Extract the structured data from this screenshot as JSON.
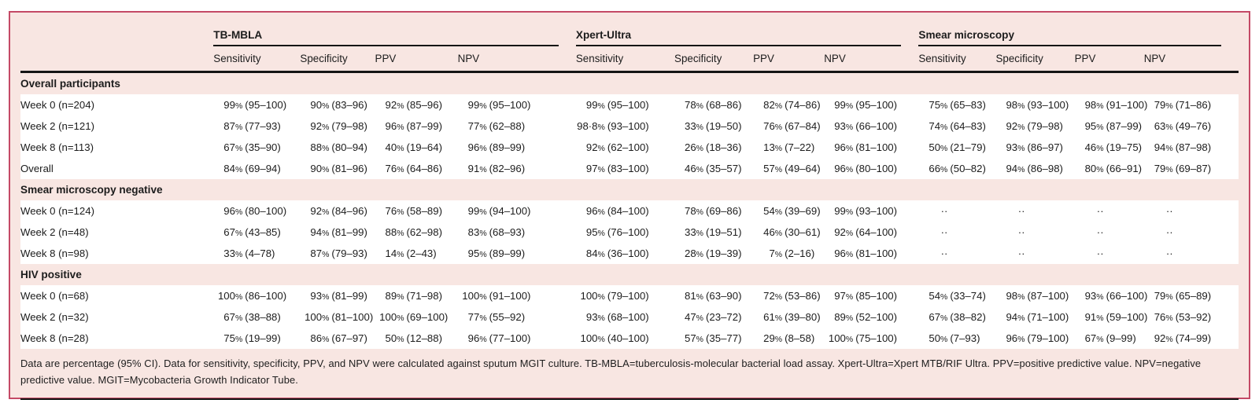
{
  "theme": {
    "card_background": "#f8e6e2",
    "card_border": "#c44a66",
    "rule_color": "#151515",
    "data_row_background": "#ffffff",
    "text_color": "#1c1c1c"
  },
  "table": {
    "column_groups": [
      {
        "label": "TB-MBLA",
        "columns": [
          "Sensitivity",
          "Specificity",
          "PPV",
          "NPV"
        ]
      },
      {
        "label": "Xpert-Ultra",
        "columns": [
          "Sensitivity",
          "Specificity",
          "PPV",
          "NPV"
        ]
      },
      {
        "label": "Smear microscopy",
        "columns": [
          "Sensitivity",
          "Specificity",
          "PPV",
          "NPV"
        ]
      }
    ],
    "sections": [
      {
        "title": "Overall participants",
        "rows": [
          {
            "label": "Week 0 (n=204)",
            "values": [
              "99% (95–100)",
              "90% (83–96)",
              "92% (85–96)",
              "99% (95–100)",
              "99% (95–100)",
              "78% (68–86)",
              "82% (74–86)",
              "99% (95–100)",
              "75% (65–83)",
              "98% (93–100)",
              "98% (91–100)",
              "79% (71–86)"
            ]
          },
          {
            "label": "Week 2 (n=121)",
            "values": [
              "87% (77–93)",
              "92% (79–98)",
              "96% (87–99)",
              "77% (62–88)",
              "98·8% (93–100)",
              "33% (19–50)",
              "76% (67–84)",
              "93% (66–100)",
              "74% (64–83)",
              "92% (79–98)",
              "95% (87–99)",
              "63% (49–76)"
            ]
          },
          {
            "label": "Week 8 (n=113)",
            "values": [
              "67% (35–90)",
              "88% (80–94)",
              "40% (19–64)",
              "96% (89–99)",
              "92% (62–100)",
              "26% (18–36)",
              "13% (7–22)",
              "96% (81–100)",
              "50% (21–79)",
              "93% (86–97)",
              "46% (19–75)",
              "94% (87–98)"
            ]
          },
          {
            "label": "Overall",
            "values": [
              "84% (69–94)",
              "90% (81–96)",
              "76% (64–86)",
              "91% (82–96)",
              "97% (83–100)",
              "46% (35–57)",
              "57% (49–64)",
              "96% (80–100)",
              "66% (50–82)",
              "94% (86–98)",
              "80% (66–91)",
              "79% (69–87)"
            ]
          }
        ]
      },
      {
        "title": "Smear microscopy negative",
        "rows": [
          {
            "label": "Week 0 (n=124)",
            "values": [
              "96% (80–100)",
              "92% (84–96)",
              "76% (58–89)",
              "99% (94–100)",
              "96% (84–100)",
              "78% (69–86)",
              "54% (39–69)",
              "99% (93–100)",
              "··",
              "··",
              "··",
              "··"
            ]
          },
          {
            "label": "Week 2 (n=48)",
            "values": [
              "67% (43–85)",
              "94% (81–99)",
              "88% (62–98)",
              "83% (68–93)",
              "95% (76–100)",
              "33% (19–51)",
              "46% (30–61)",
              "92% (64–100)",
              "··",
              "··",
              "··",
              "··"
            ]
          },
          {
            "label": "Week 8 (n=98)",
            "values": [
              "33% (4–78)",
              "87% (79–93)",
              "14% (2–43)",
              "95% (89–99)",
              "84% (36–100)",
              "28% (19–39)",
              "7% (2–16)",
              "96% (81–100)",
              "··",
              "··",
              "··",
              "··"
            ]
          }
        ]
      },
      {
        "title": "HIV positive",
        "rows": [
          {
            "label": "Week 0 (n=68)",
            "values": [
              "100% (86–100)",
              "93% (81–99)",
              "89% (71–98)",
              "100% (91–100)",
              "100% (79–100)",
              "81% (63–90)",
              "72% (53–86)",
              "97% (85–100)",
              "54% (33–74)",
              "98% (87–100)",
              "93% (66–100)",
              "79% (65–89)"
            ]
          },
          {
            "label": "Week 2 (n=32)",
            "values": [
              "67% (38–88)",
              "100% (81–100)",
              "100% (69–100)",
              "77% (55–92)",
              "93% (68–100)",
              "47% (23–72)",
              "61% (39–80)",
              "89% (52–100)",
              "67% (38–82)",
              "94% (71–100)",
              "91% (59–100)",
              "76% (53–92)"
            ]
          },
          {
            "label": "Week 8 (n=28)",
            "values": [
              "75% (19–99)",
              "86% (67–97)",
              "50% (12–88)",
              "96% (77–100)",
              "100% (40–100)",
              "57% (35–77)",
              "29% (8–58)",
              "100% (75–100)",
              "50% (7–93)",
              "96% (79–100)",
              "67% (9–99)",
              "92% (74–99)"
            ]
          }
        ]
      }
    ],
    "footnote": "Data are percentage (95% CI). Data for sensitivity, specificity, PPV, and NPV were calculated against sputum MGIT culture. TB-MBLA=tuberculosis-molecular bacterial load assay. Xpert-Ultra=Xpert MTB/RIF Ultra. PPV=positive predictive value. NPV=negative predictive value. MGIT=Mycobacteria Growth Indicator Tube."
  }
}
